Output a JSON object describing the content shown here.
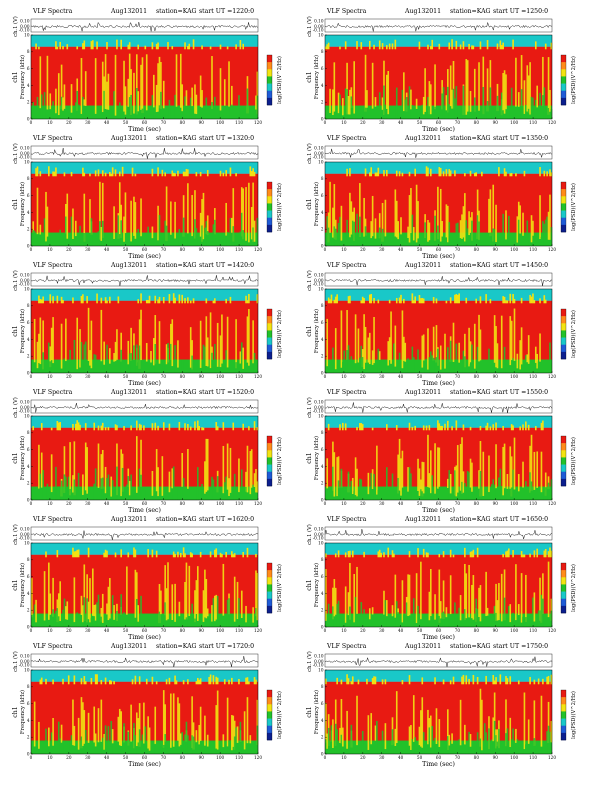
{
  "colors": {
    "band_top": "#19c8c8",
    "spectrum_main": "#e81a12",
    "spectrum_mid": "#f2e312",
    "spectrum_low": "#22c12a",
    "background_high": "#66d3e6"
  },
  "chart_data": [
    {
      "type": "heatmap",
      "title": "VLF Spectra",
      "date": "Aug132011",
      "station": "station=KAG",
      "start": "start UT =1220:0",
      "ylabel_top": "ch.1 (V)",
      "ylabel": "Frequency (kHz)",
      "ylabel_prefix": "ch1",
      "xlabel": "Time (sec)",
      "colorbar_label": "log(PSD)(V^2/Hz)",
      "x_ticks": [
        "0",
        "10",
        "20",
        "30",
        "40",
        "50",
        "60",
        "70",
        "80",
        "90",
        "100",
        "110",
        "120"
      ],
      "y_ticks": [
        "0",
        "2",
        "4",
        "6",
        "8",
        "10"
      ],
      "waveform_ticks": [
        "0.10",
        "0.00",
        "-0.10"
      ],
      "xlim": [
        0,
        120
      ],
      "ylim": [
        0,
        10
      ]
    },
    {
      "type": "heatmap",
      "title": "VLF Spectra",
      "date": "Aug132011",
      "station": "station=KAG",
      "start": "start UT =1250:0",
      "ylabel_top": "ch.1 (V)",
      "ylabel": "Frequency (kHz)",
      "ylabel_prefix": "ch1",
      "xlabel": "Time (sec)",
      "colorbar_label": "log(PSD)(V^2/Hz)",
      "x_ticks": [
        "0",
        "10",
        "20",
        "30",
        "40",
        "50",
        "60",
        "70",
        "80",
        "90",
        "100",
        "110",
        "120"
      ],
      "y_ticks": [
        "0",
        "2",
        "4",
        "6",
        "8",
        "10"
      ],
      "waveform_ticks": [
        "0.10",
        "0.00",
        "-0.10"
      ],
      "xlim": [
        0,
        120
      ],
      "ylim": [
        0,
        10
      ]
    },
    {
      "type": "heatmap",
      "title": "VLF Spectra",
      "date": "Aug132011",
      "station": "station=KAG",
      "start": "start UT =1320:0",
      "ylabel_top": "ch.1 (V)",
      "ylabel": "Frequency (kHz)",
      "ylabel_prefix": "ch1",
      "xlabel": "Time (sec)",
      "colorbar_label": "log(PSD)(V^2/Hz)",
      "x_ticks": [
        "0",
        "10",
        "20",
        "30",
        "40",
        "50",
        "60",
        "70",
        "80",
        "90",
        "100",
        "110",
        "120"
      ],
      "y_ticks": [
        "0",
        "2",
        "4",
        "6",
        "8",
        "10"
      ],
      "waveform_ticks": [
        "0.10",
        "0.00",
        "-0.10"
      ],
      "xlim": [
        0,
        120
      ],
      "ylim": [
        0,
        10
      ]
    },
    {
      "type": "heatmap",
      "title": "VLF Spectra",
      "date": "Aug132011",
      "station": "station=KAG",
      "start": "start UT =1350:0",
      "ylabel_top": "ch.1 (V)",
      "ylabel": "Frequency (kHz)",
      "ylabel_prefix": "ch1",
      "xlabel": "Time (sec)",
      "colorbar_label": "log(PSD)(V^2/Hz)",
      "x_ticks": [
        "0",
        "10",
        "20",
        "30",
        "40",
        "50",
        "60",
        "70",
        "80",
        "90",
        "100",
        "110",
        "120"
      ],
      "y_ticks": [
        "0",
        "2",
        "4",
        "6",
        "8",
        "10"
      ],
      "waveform_ticks": [
        "0.10",
        "0.00",
        "-0.10"
      ],
      "xlim": [
        0,
        120
      ],
      "ylim": [
        0,
        10
      ]
    },
    {
      "type": "heatmap",
      "title": "VLF Spectra",
      "date": "Aug132011",
      "station": "station=KAG",
      "start": "start UT =1420:0",
      "ylabel_top": "ch.1 (V)",
      "ylabel": "Frequency (kHz)",
      "ylabel_prefix": "ch1",
      "xlabel": "Time (sec)",
      "colorbar_label": "log(PSD)(V^2/Hz)",
      "x_ticks": [
        "0",
        "10",
        "20",
        "30",
        "40",
        "50",
        "60",
        "70",
        "80",
        "90",
        "100",
        "110",
        "120"
      ],
      "y_ticks": [
        "0",
        "2",
        "4",
        "6",
        "8",
        "10"
      ],
      "waveform_ticks": [
        "0.10",
        "0.00",
        "-0.10"
      ],
      "xlim": [
        0,
        120
      ],
      "ylim": [
        0,
        10
      ]
    },
    {
      "type": "heatmap",
      "title": "VLF Spectra",
      "date": "Aug132011",
      "station": "station=KAG",
      "start": "start UT =1450:0",
      "ylabel_top": "ch.1 (V)",
      "ylabel": "Frequency (kHz)",
      "ylabel_prefix": "ch1",
      "xlabel": "Time (sec)",
      "colorbar_label": "log(PSD)(V^2/Hz)",
      "x_ticks": [
        "0",
        "10",
        "20",
        "30",
        "40",
        "50",
        "60",
        "70",
        "80",
        "90",
        "100",
        "110",
        "120"
      ],
      "y_ticks": [
        "0",
        "2",
        "4",
        "6",
        "8",
        "10"
      ],
      "waveform_ticks": [
        "0.10",
        "0.00",
        "-0.10"
      ],
      "xlim": [
        0,
        120
      ],
      "ylim": [
        0,
        10
      ]
    },
    {
      "type": "heatmap",
      "title": "VLF Spectra",
      "date": "Aug132011",
      "station": "station=KAG",
      "start": "start UT =1520:0",
      "ylabel_top": "ch.1 (V)",
      "ylabel": "Frequency (kHz)",
      "ylabel_prefix": "ch1",
      "xlabel": "Time (sec)",
      "colorbar_label": "log(PSD)(V^2/Hz)",
      "x_ticks": [
        "0",
        "10",
        "20",
        "30",
        "40",
        "50",
        "60",
        "70",
        "80",
        "90",
        "100",
        "110",
        "120"
      ],
      "y_ticks": [
        "0",
        "2",
        "4",
        "6",
        "8",
        "10"
      ],
      "waveform_ticks": [
        "0.10",
        "0.00",
        "-0.10"
      ],
      "xlim": [
        0,
        120
      ],
      "ylim": [
        0,
        10
      ]
    },
    {
      "type": "heatmap",
      "title": "VLF Spectra",
      "date": "Aug132011",
      "station": "station=KAG",
      "start": "start UT =1550:0",
      "ylabel_top": "ch.1 (V)",
      "ylabel": "Frequency (kHz)",
      "ylabel_prefix": "ch1",
      "xlabel": "Time (sec)",
      "colorbar_label": "log(PSD)(V^2/Hz)",
      "x_ticks": [
        "0",
        "10",
        "20",
        "30",
        "40",
        "50",
        "60",
        "70",
        "80",
        "90",
        "100",
        "110",
        "120"
      ],
      "y_ticks": [
        "0",
        "2",
        "4",
        "6",
        "8",
        "10"
      ],
      "waveform_ticks": [
        "0.10",
        "0.00",
        "-0.10"
      ],
      "xlim": [
        0,
        120
      ],
      "ylim": [
        0,
        10
      ]
    },
    {
      "type": "heatmap",
      "title": "VLF Spectra",
      "date": "Aug132011",
      "station": "station=KAG",
      "start": "start UT =1620:0",
      "ylabel_top": "ch.1 (V)",
      "ylabel": "Frequency (kHz)",
      "ylabel_prefix": "ch1",
      "xlabel": "Time (sec)",
      "colorbar_label": "log(PSD)(V^2/Hz)",
      "x_ticks": [
        "0",
        "10",
        "20",
        "30",
        "40",
        "50",
        "60",
        "70",
        "80",
        "90",
        "100",
        "110",
        "120"
      ],
      "y_ticks": [
        "0",
        "2",
        "4",
        "6",
        "8",
        "10"
      ],
      "waveform_ticks": [
        "0.10",
        "0.00",
        "-0.10"
      ],
      "xlim": [
        0,
        120
      ],
      "ylim": [
        0,
        10
      ]
    },
    {
      "type": "heatmap",
      "title": "VLF Spectra",
      "date": "Aug132011",
      "station": "station=KAG",
      "start": "start UT =1650:0",
      "ylabel_top": "ch.1 (V)",
      "ylabel": "Frequency (kHz)",
      "ylabel_prefix": "ch1",
      "xlabel": "Time (sec)",
      "colorbar_label": "log(PSD)(V^2/Hz)",
      "x_ticks": [
        "0",
        "10",
        "20",
        "30",
        "40",
        "50",
        "60",
        "70",
        "80",
        "90",
        "100",
        "110",
        "120"
      ],
      "y_ticks": [
        "0",
        "2",
        "4",
        "6",
        "8",
        "10"
      ],
      "waveform_ticks": [
        "0.10",
        "0.00",
        "-0.10"
      ],
      "xlim": [
        0,
        120
      ],
      "ylim": [
        0,
        10
      ]
    },
    {
      "type": "heatmap",
      "title": "VLF Spectra",
      "date": "Aug132011",
      "station": "station=KAG",
      "start": "start UT =1720:0",
      "ylabel_top": "ch.1 (V)",
      "ylabel": "Frequency (kHz)",
      "ylabel_prefix": "ch1",
      "xlabel": "Time (sec)",
      "colorbar_label": "log(PSD)(V^2/Hz)",
      "x_ticks": [
        "0",
        "10",
        "20",
        "30",
        "40",
        "50",
        "60",
        "70",
        "80",
        "90",
        "100",
        "110",
        "120"
      ],
      "y_ticks": [
        "0",
        "2",
        "4",
        "6",
        "8",
        "10"
      ],
      "waveform_ticks": [
        "0.10",
        "0.00",
        "-0.10"
      ],
      "xlim": [
        0,
        120
      ],
      "ylim": [
        0,
        10
      ]
    },
    {
      "type": "heatmap",
      "title": "VLF Spectra",
      "date": "Aug132011",
      "station": "station=KAG",
      "start": "start UT =1750:0",
      "ylabel_top": "ch.1 (V)",
      "ylabel": "Frequency (kHz)",
      "ylabel_prefix": "ch1",
      "xlabel": "Time (sec)",
      "colorbar_label": "log(PSD)(V^2/Hz)",
      "x_ticks": [
        "0",
        "10",
        "20",
        "30",
        "40",
        "50",
        "60",
        "70",
        "80",
        "90",
        "100",
        "110",
        "120"
      ],
      "y_ticks": [
        "0",
        "2",
        "4",
        "6",
        "8",
        "10"
      ],
      "waveform_ticks": [
        "0.10",
        "0.00",
        "-0.10"
      ],
      "xlim": [
        0,
        120
      ],
      "ylim": [
        0,
        10
      ]
    }
  ]
}
